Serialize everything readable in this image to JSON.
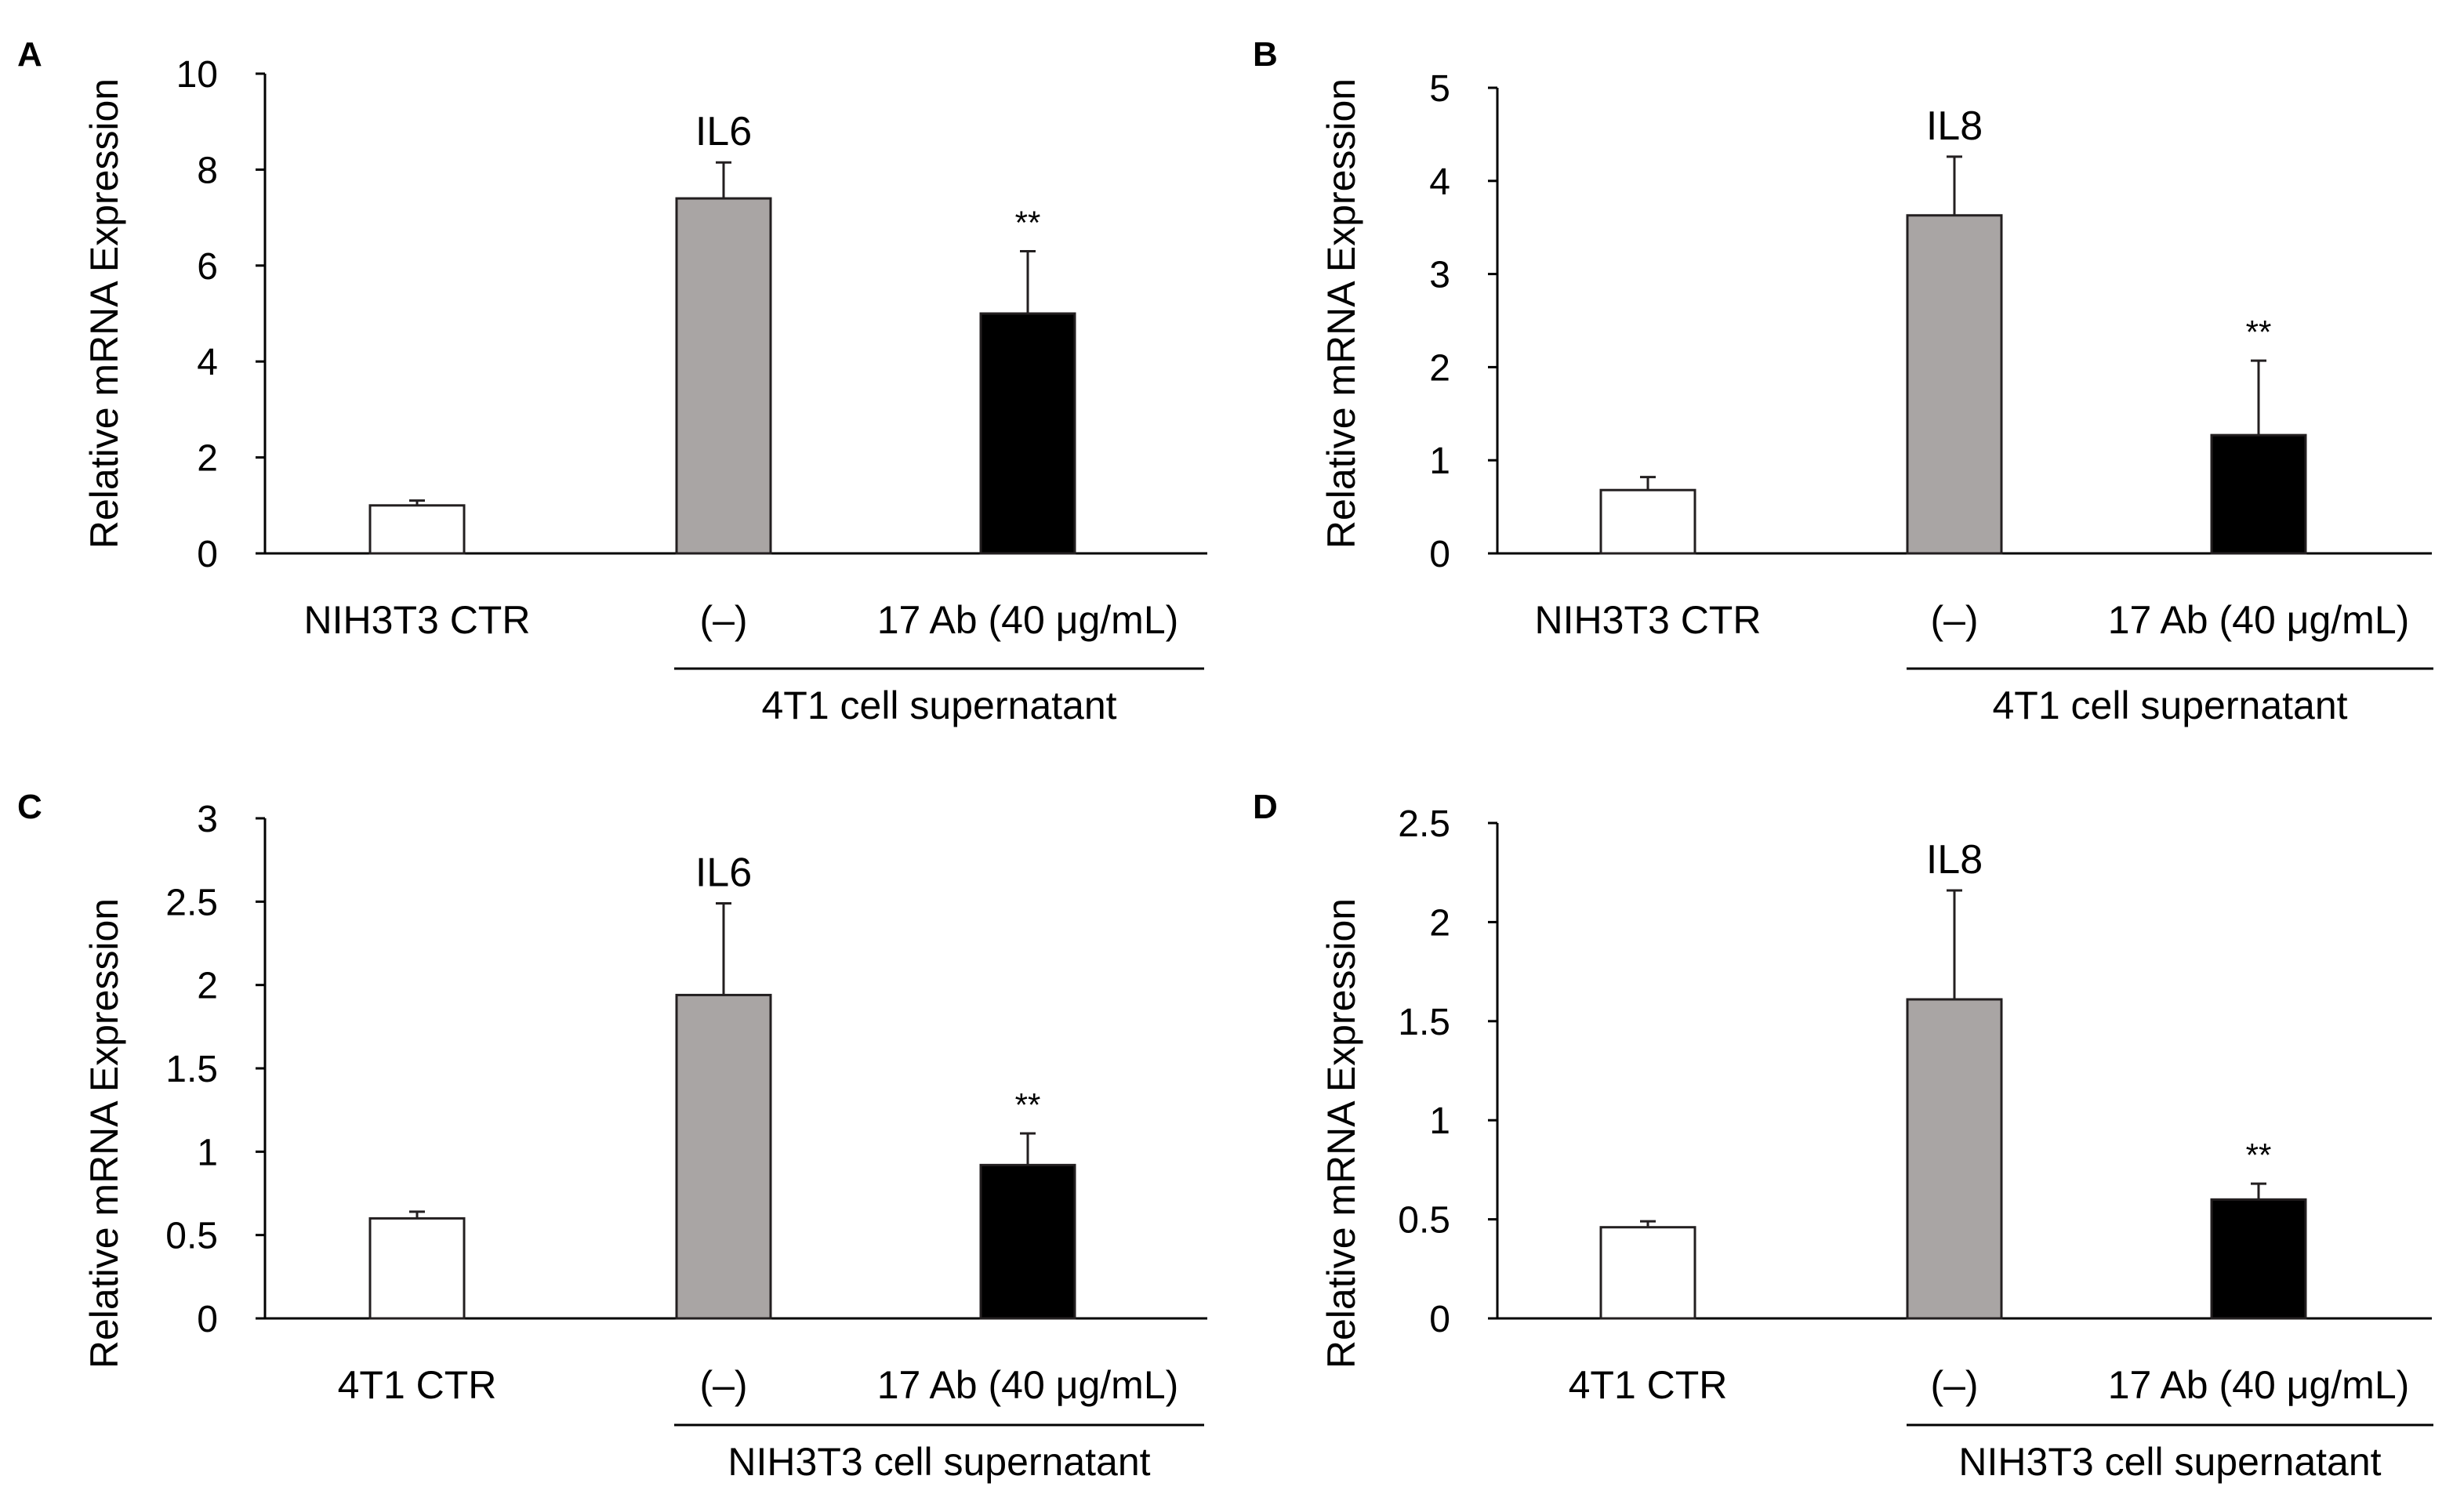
{
  "chart_data": [
    {
      "panel": "A",
      "type": "bar",
      "title": "IL6",
      "ylabel": "Relative mRNA Expression",
      "ylim": [
        0,
        10
      ],
      "yticks": [
        0,
        2,
        4,
        6,
        8,
        10
      ],
      "ytick_labels": [
        "0",
        "2",
        "4",
        "6",
        "8",
        "10"
      ],
      "categories": [
        "NIH3T3 CTR",
        "(–)",
        "17 Ab (40 μg/mL)"
      ],
      "values": [
        1.0,
        7.4,
        5.0
      ],
      "errors": [
        0.1,
        0.75,
        1.3
      ],
      "colors": [
        "#ffffff",
        "#a9a5a4",
        "#000000"
      ],
      "significance": [
        "",
        "",
        "**"
      ],
      "group_label": "4T1 cell supernatant"
    },
    {
      "panel": "B",
      "type": "bar",
      "title": "IL8",
      "ylabel": "Relative mRNA Expression",
      "ylim": [
        0,
        5
      ],
      "yticks": [
        0,
        1,
        2,
        3,
        4,
        5
      ],
      "ytick_labels": [
        "0",
        "1",
        "2",
        "3",
        "4",
        "5"
      ],
      "categories": [
        "NIH3T3 CTR",
        "(–)",
        "17 Ab (40 μg/mL)"
      ],
      "values": [
        0.68,
        3.63,
        1.27
      ],
      "errors": [
        0.14,
        0.63,
        0.8
      ],
      "colors": [
        "#ffffff",
        "#a9a5a4",
        "#000000"
      ],
      "significance": [
        "",
        "",
        "**"
      ],
      "group_label": "4T1 cell supernatant"
    },
    {
      "panel": "C",
      "type": "bar",
      "title": "IL6",
      "ylabel": "Relative mRNA Expression",
      "ylim": [
        0,
        3
      ],
      "yticks": [
        0,
        0.5,
        1,
        1.5,
        2,
        2.5,
        3
      ],
      "ytick_labels": [
        "0",
        "0.5",
        "1",
        "1.5",
        "2",
        "2.5",
        "3"
      ],
      "categories": [
        "4T1 CTR",
        "(–)",
        "17 Ab (40 μg/mL)"
      ],
      "values": [
        0.6,
        1.94,
        0.92
      ],
      "errors": [
        0.04,
        0.55,
        0.19
      ],
      "colors": [
        "#ffffff",
        "#a9a5a4",
        "#000000"
      ],
      "significance": [
        "",
        "",
        "**"
      ],
      "group_label": "NIH3T3 cell supernatant"
    },
    {
      "panel": "D",
      "type": "bar",
      "title": "IL8",
      "ylabel": "Relative mRNA Expression",
      "ylim": [
        0,
        2.5
      ],
      "yticks": [
        0,
        0.5,
        1,
        1.5,
        2,
        2.5
      ],
      "ytick_labels": [
        "0",
        "0.5",
        "1",
        "1.5",
        "2",
        "2.5"
      ],
      "categories": [
        "4T1 CTR",
        "(–)",
        "17 Ab (40 μg/mL)"
      ],
      "values": [
        0.46,
        1.61,
        0.6
      ],
      "errors": [
        0.03,
        0.55,
        0.08
      ],
      "colors": [
        "#ffffff",
        "#a9a5a4",
        "#000000"
      ],
      "significance": [
        "",
        "",
        "**"
      ],
      "group_label": "NIH3T3 cell supernatant"
    }
  ]
}
